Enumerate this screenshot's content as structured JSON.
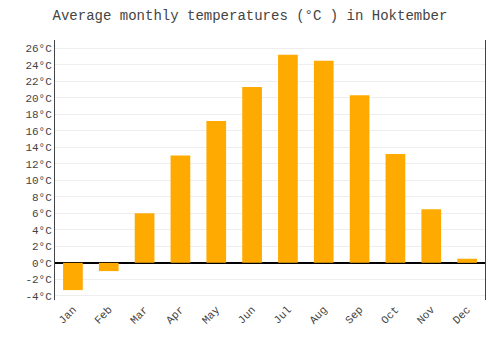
{
  "chart_data": {
    "type": "bar",
    "title": "Average monthly temperatures (°C ) in Hoktember",
    "categories": [
      "Jan",
      "Feb",
      "Mar",
      "Apr",
      "May",
      "Jun",
      "Jul",
      "Aug",
      "Sep",
      "Oct",
      "Nov",
      "Dec"
    ],
    "values": [
      -3.3,
      -1.0,
      6.0,
      13.0,
      17.2,
      21.3,
      25.2,
      24.5,
      20.3,
      13.2,
      6.5,
      0.5
    ],
    "color": "#FFAA00",
    "ylim": [
      -4.5,
      27
    ],
    "yticks": [
      {
        "value": -4,
        "label": "-4°C"
      },
      {
        "value": -2,
        "label": "-2°C"
      },
      {
        "value": 0,
        "label": "0°C"
      },
      {
        "value": 2,
        "label": "2°C"
      },
      {
        "value": 4,
        "label": "4°C"
      },
      {
        "value": 6,
        "label": "6°C"
      },
      {
        "value": 8,
        "label": "8°C"
      },
      {
        "value": 10,
        "label": "10°C"
      },
      {
        "value": 12,
        "label": "12°C"
      },
      {
        "value": 14,
        "label": "14°C"
      },
      {
        "value": 16,
        "label": "16°C"
      },
      {
        "value": 18,
        "label": "18°C"
      },
      {
        "value": 20,
        "label": "20°C"
      },
      {
        "value": 22,
        "label": "22°C"
      },
      {
        "value": 24,
        "label": "24°C"
      },
      {
        "value": 26,
        "label": "26°C"
      }
    ],
    "grid": true
  }
}
